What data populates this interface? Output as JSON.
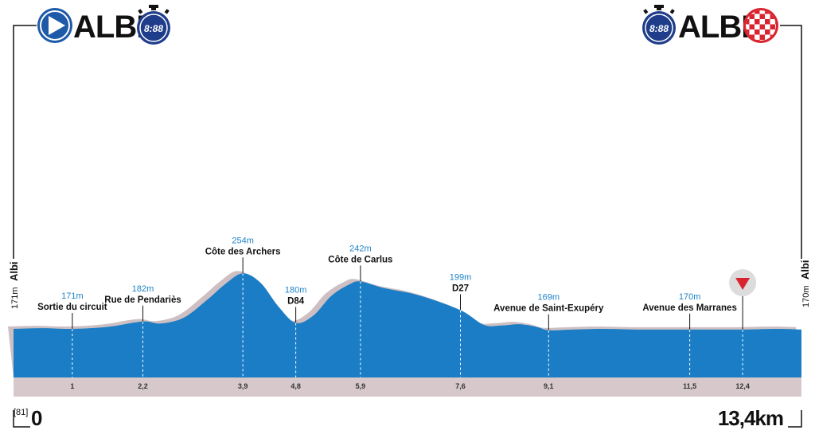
{
  "header": {
    "start_city": "ALBI",
    "finish_city": "ALBI",
    "start_timer": "8:88",
    "finish_timer": "8:88"
  },
  "footer": {
    "stage_code": "[81]",
    "start_distance": "0",
    "total_distance": "13,4km"
  },
  "sides": {
    "left_city": "Albi",
    "left_altitude": "171m",
    "right_city": "Albi",
    "right_altitude": "170m"
  },
  "colors": {
    "profile_fill": "#1a7dc5",
    "profile_shadow": "#cdbfc2",
    "km_band": "#d6c8cb",
    "start_icon": "#1e5aa8",
    "finish_check": "#d9242f",
    "flamme_rouge": "#d9242f"
  },
  "chart_data": {
    "type": "area",
    "title": "",
    "xlabel": "",
    "ylabel": "",
    "xlim": [
      0,
      13.4
    ],
    "ylim": [
      100,
      280
    ],
    "profile": {
      "x": [
        0,
        0.5,
        1,
        1.6,
        2.2,
        2.5,
        2.9,
        3.3,
        3.6,
        3.9,
        4.2,
        4.5,
        4.8,
        5.1,
        5.4,
        5.7,
        5.9,
        6.3,
        6.9,
        7.6,
        8.0,
        8.3,
        8.6,
        8.9,
        9.1,
        9.5,
        10.0,
        10.6,
        11.5,
        12.0,
        12.4,
        13.0,
        13.4
      ],
      "y": [
        171,
        172,
        171,
        174,
        182,
        179,
        188,
        215,
        238,
        254,
        240,
        205,
        180,
        191,
        220,
        237,
        242,
        232,
        221,
        199,
        177,
        176,
        178,
        174,
        169,
        170,
        171,
        170,
        170,
        170,
        170,
        171,
        170
      ]
    },
    "points": [
      {
        "km": "1",
        "x": 1,
        "altitude": "171m",
        "name": "Sortie du circuit"
      },
      {
        "km": "2,2",
        "x": 2.2,
        "altitude": "182m",
        "name": "Rue de Pendariès"
      },
      {
        "km": "3,9",
        "x": 3.9,
        "altitude": "254m",
        "name": "Côte des Archers"
      },
      {
        "km": "4,8",
        "x": 4.8,
        "altitude": "180m",
        "name": "D84"
      },
      {
        "km": "5,9",
        "x": 5.9,
        "altitude": "242m",
        "name": "Côte de Carlus"
      },
      {
        "km": "7,6",
        "x": 7.6,
        "altitude": "199m",
        "name": "D27"
      },
      {
        "km": "9,1",
        "x": 9.1,
        "altitude": "169m",
        "name": "Avenue de Saint-Exupéry"
      },
      {
        "km": "11,5",
        "x": 11.5,
        "altitude": "170m",
        "name": "Avenue des Marranes"
      },
      {
        "km": "12,4",
        "x": 12.4,
        "altitude": "",
        "name": ""
      }
    ],
    "flamme_rouge_km": 12.4,
    "grid": false,
    "legend": "none"
  }
}
